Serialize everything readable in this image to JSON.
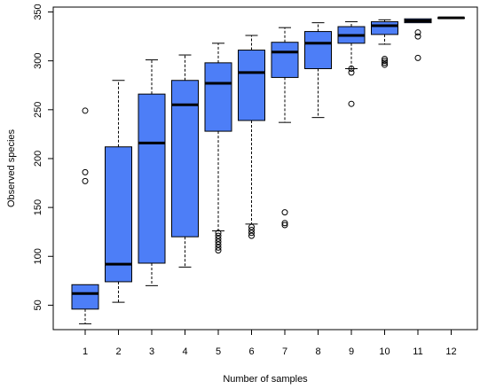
{
  "chart_data": {
    "type": "boxplot",
    "title": "",
    "xlabel": "Number of samples",
    "ylabel": "Observed species",
    "ylim": [
      25,
      355
    ],
    "y_ticks": [
      50,
      100,
      150,
      200,
      250,
      300,
      350
    ],
    "categories": [
      "1",
      "2",
      "3",
      "4",
      "5",
      "6",
      "7",
      "8",
      "9",
      "10",
      "11",
      "12"
    ],
    "boxes": [
      {
        "category": "1",
        "whisker_low": 31,
        "q1": 46,
        "median": 62,
        "q3": 71,
        "whisker_high": 71,
        "outliers": [
          177,
          186,
          249
        ]
      },
      {
        "category": "2",
        "whisker_low": 53,
        "q1": 74,
        "median": 92,
        "q3": 212,
        "whisker_high": 280,
        "outliers": []
      },
      {
        "category": "3",
        "whisker_low": 70,
        "q1": 93,
        "median": 216,
        "q3": 266,
        "whisker_high": 301,
        "outliers": []
      },
      {
        "category": "4",
        "whisker_low": 89,
        "q1": 120,
        "median": 255,
        "q3": 280,
        "whisker_high": 306,
        "outliers": []
      },
      {
        "category": "5",
        "whisker_low": 126,
        "q1": 228,
        "median": 277,
        "q3": 298,
        "whisker_high": 318,
        "outliers": [
          106,
          109,
          112,
          115,
          118,
          121,
          124
        ]
      },
      {
        "category": "6",
        "whisker_low": 133,
        "q1": 239,
        "median": 288,
        "q3": 311,
        "whisker_high": 326,
        "outliers": [
          121,
          124,
          127,
          130
        ]
      },
      {
        "category": "7",
        "whisker_low": 237,
        "q1": 283,
        "median": 309,
        "q3": 319,
        "whisker_high": 334,
        "outliers": [
          132,
          134,
          145
        ]
      },
      {
        "category": "8",
        "whisker_low": 242,
        "q1": 292,
        "median": 318,
        "q3": 330,
        "whisker_high": 339,
        "outliers": []
      },
      {
        "category": "9",
        "whisker_low": 292,
        "q1": 318,
        "median": 326,
        "q3": 335,
        "whisker_high": 340,
        "outliers": [
          256,
          288,
          292
        ]
      },
      {
        "category": "10",
        "whisker_low": 317,
        "q1": 327,
        "median": 336,
        "q3": 340,
        "whisker_high": 342,
        "outliers": [
          296,
          298,
          300,
          302
        ]
      },
      {
        "category": "11",
        "whisker_low": 339,
        "q1": 339,
        "median": 341,
        "q3": 343,
        "whisker_high": 343,
        "outliers": [
          303,
          325,
          329
        ]
      },
      {
        "category": "12",
        "whisker_low": 344,
        "q1": 344,
        "median": 344,
        "q3": 344,
        "whisker_high": 344,
        "outliers": []
      }
    ],
    "grid": false,
    "legend": "none",
    "colors": {
      "box_fill": "#4d7ef7",
      "stroke": "#000000",
      "background": "#ffffff"
    }
  }
}
